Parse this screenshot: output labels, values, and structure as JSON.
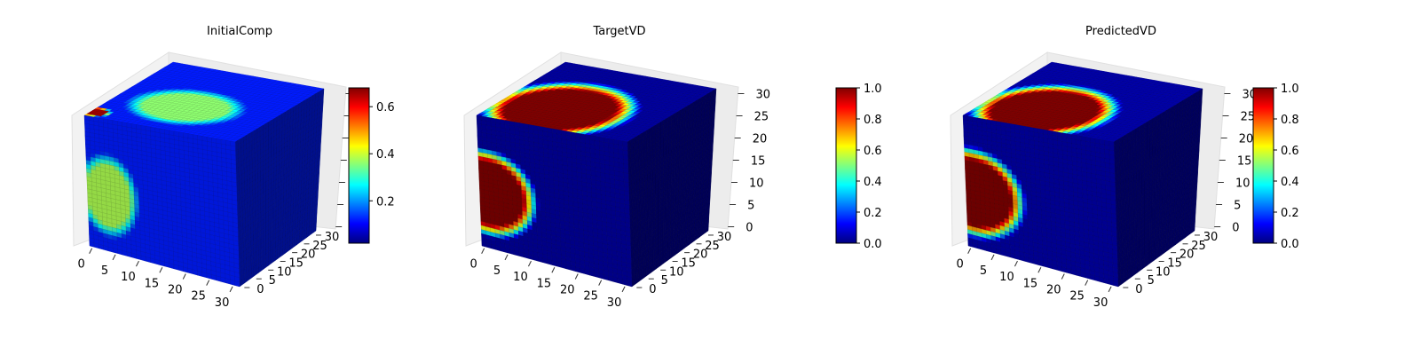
{
  "figure": {
    "background": "#ffffff",
    "colormap": "jet",
    "colormap_stops": [
      "#00007f",
      "#0000ff",
      "#007fff",
      "#00ffff",
      "#7fff7f",
      "#ffff00",
      "#ff7f00",
      "#ff0000",
      "#7f0000"
    ]
  },
  "chart_data": [
    {
      "type": "heatmap",
      "subtype": "3d-voxel",
      "title": "InitialComp",
      "grid_size": [
        32,
        32,
        32
      ],
      "x_ticks": [
        "0",
        "5",
        "10",
        "15",
        "20",
        "25",
        "30"
      ],
      "y_ticks": [
        "0",
        "5",
        "10",
        "15",
        "20",
        "25",
        "30"
      ],
      "z_ticks": [],
      "xlim": [
        0,
        32
      ],
      "ylim": [
        0,
        32
      ],
      "zlim": [
        0,
        32
      ],
      "colorbar": {
        "ticks": [
          "0.2",
          "0.4",
          "0.6"
        ],
        "range": [
          0.02,
          0.68
        ]
      },
      "regions": [
        {
          "face": "front",
          "u": 0.14,
          "v": 0.58,
          "ru": 0.18,
          "rv": 0.28,
          "value": 0.38
        },
        {
          "face": "top",
          "u": 0.55,
          "v": 0.62,
          "ru": 0.32,
          "rv": 0.26,
          "value": 0.36
        },
        {
          "face": "top",
          "u": 0.98,
          "v": 0.92,
          "ru": 0.09,
          "rv": 0.07,
          "value": 0.66
        }
      ],
      "background_value": 0.12
    },
    {
      "type": "heatmap",
      "subtype": "3d-voxel",
      "title": "TargetVD",
      "grid_size": [
        32,
        32,
        32
      ],
      "x_ticks": [
        "0",
        "5",
        "10",
        "15",
        "20",
        "25",
        "30"
      ],
      "y_ticks": [
        "0",
        "5",
        "10",
        "15",
        "20",
        "25",
        "30"
      ],
      "z_ticks": [
        "0",
        "5",
        "10",
        "15",
        "20",
        "25",
        "30"
      ],
      "xlim": [
        0,
        32
      ],
      "ylim": [
        0,
        32
      ],
      "zlim": [
        0,
        32
      ],
      "colorbar": {
        "ticks": [
          "0.0",
          "0.2",
          "0.4",
          "0.6",
          "0.8",
          "1.0"
        ],
        "range": [
          0.0,
          1.0
        ]
      },
      "regions": [
        {
          "face": "front",
          "u": 0.05,
          "v": 0.58,
          "ru": 0.3,
          "rv": 0.3,
          "value": 1.0
        },
        {
          "face": "top",
          "u": 0.62,
          "v": 0.7,
          "ru": 0.4,
          "rv": 0.42,
          "value": 1.0
        }
      ],
      "background_value": 0.03
    },
    {
      "type": "heatmap",
      "subtype": "3d-voxel",
      "title": "PredictedVD",
      "grid_size": [
        32,
        32,
        32
      ],
      "x_ticks": [
        "0",
        "5",
        "10",
        "15",
        "20",
        "25",
        "30"
      ],
      "y_ticks": [
        "0",
        "5",
        "10",
        "15",
        "20",
        "25",
        "30"
      ],
      "z_ticks": [
        "0",
        "5",
        "10",
        "15",
        "20",
        "25",
        "30"
      ],
      "xlim": [
        0,
        32
      ],
      "ylim": [
        0,
        32
      ],
      "zlim": [
        0,
        32
      ],
      "colorbar": {
        "ticks": [
          "0.0",
          "0.2",
          "0.4",
          "0.6",
          "0.8",
          "1.0"
        ],
        "range": [
          0.0,
          1.0
        ]
      },
      "regions": [
        {
          "face": "front",
          "u": 0.05,
          "v": 0.58,
          "ru": 0.31,
          "rv": 0.31,
          "value": 1.0
        },
        {
          "face": "top",
          "u": 0.62,
          "v": 0.72,
          "ru": 0.38,
          "rv": 0.4,
          "value": 1.0
        }
      ],
      "background_value": 0.04
    }
  ]
}
